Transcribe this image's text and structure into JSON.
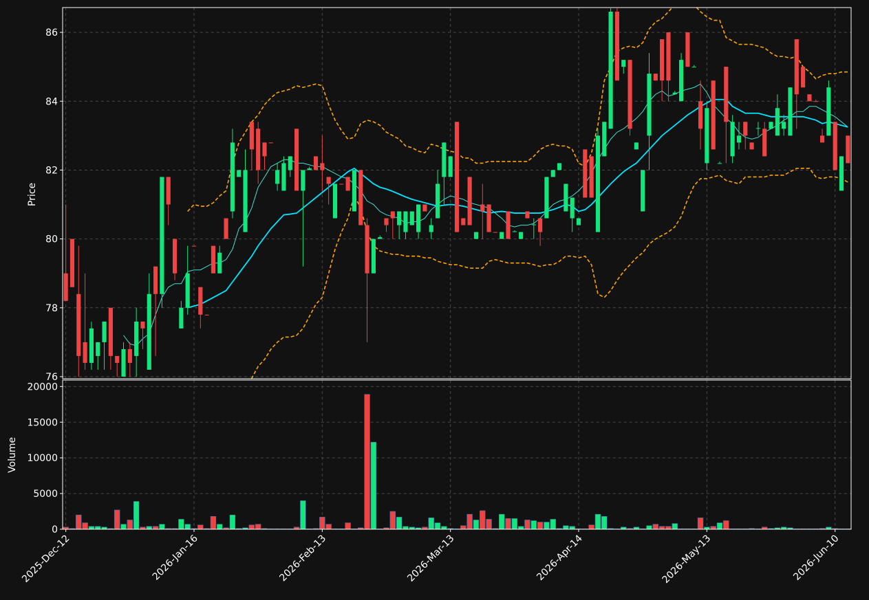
{
  "chart_data": {
    "type": "candlestick",
    "categories": [
      "2025-Dec-12",
      null,
      null,
      null,
      null,
      null,
      null,
      null,
      null,
      null,
      null,
      null,
      null,
      null,
      null,
      null,
      null,
      null,
      null,
      null,
      "2026-Jan-16",
      null,
      null,
      null,
      null,
      null,
      null,
      null,
      null,
      null,
      null,
      null,
      null,
      null,
      null,
      null,
      null,
      null,
      null,
      null,
      "2026-Feb-13",
      null,
      null,
      null,
      null,
      null,
      null,
      null,
      null,
      null,
      null,
      null,
      null,
      null,
      null,
      null,
      null,
      null,
      null,
      null,
      "2026-Mar-13",
      null,
      null,
      null,
      null,
      null,
      null,
      null,
      null,
      null,
      null,
      null,
      null,
      null,
      null,
      null,
      null,
      null,
      null,
      null,
      "2026-Apr-14",
      null,
      null,
      null,
      null,
      null,
      null,
      null,
      null,
      null,
      null,
      null,
      null,
      null,
      null,
      null,
      null,
      null,
      null,
      null,
      "2026-May-13",
      null,
      null,
      null,
      null,
      null,
      null,
      null,
      null,
      null,
      null,
      null,
      null,
      null,
      null,
      null,
      null,
      null,
      null,
      null,
      "2026-Jun-10",
      null,
      null
    ],
    "open": [
      79,
      80,
      78.4,
      77,
      76.4,
      76.6,
      77,
      78,
      76.6,
      76,
      76.8,
      76.6,
      77.6,
      76.2,
      79.2,
      78.4,
      81.8,
      80,
      77.4,
      78,
      79.8,
      78.6,
      77.8,
      79.8,
      79,
      80.6,
      80.8,
      81.8,
      80.2,
      83.4,
      83.2,
      82.8,
      82.8,
      81.6,
      81.4,
      82,
      83.2,
      81.4,
      82,
      82.4,
      82.2,
      81.8,
      80.6,
      81.6,
      81.8,
      80.8,
      82,
      80.4,
      79,
      80,
      80.6,
      80.8,
      80.4,
      80.2,
      80.4,
      80.2,
      81,
      80.2,
      80.6,
      81.8,
      81.8,
      83.4,
      80.6,
      81.8,
      80,
      81,
      81,
      80.2,
      80,
      80.8,
      80.2,
      80,
      80.8,
      80.4,
      80.6,
      80.6,
      81.8,
      82,
      80.8,
      80.6,
      80.4,
      82.6,
      82.4,
      80.2,
      82.4,
      83.2,
      86.6,
      85,
      85.2,
      82.6,
      80.8,
      83,
      84.8,
      85.8,
      86,
      84.2,
      84,
      86,
      85,
      84,
      82.2,
      84.6,
      82.2,
      85,
      82.4,
      82.8,
      83.4,
      82.8,
      83.2,
      83.2,
      83.2,
      83,
      83.2,
      83,
      85.8,
      85,
      84.2,
      84,
      83,
      83,
      83.4,
      81.4,
      83
    ],
    "high": [
      81,
      80,
      79.8,
      79,
      77.6,
      77,
      77.6,
      78,
      76.6,
      77,
      77,
      78,
      77.6,
      79,
      79.2,
      81.8,
      81.8,
      80,
      78.2,
      79.8,
      79.8,
      78.6,
      77.8,
      79.8,
      79.8,
      80.6,
      83.2,
      82,
      82.6,
      83.4,
      83.4,
      82.8,
      82.8,
      82.2,
      82.4,
      82.4,
      83.2,
      82,
      82.1,
      82.4,
      83,
      81.8,
      81.6,
      81.6,
      81.8,
      82,
      82,
      80.6,
      80,
      80.1,
      80.6,
      80.8,
      80.8,
      80.8,
      80.8,
      81,
      81,
      80.6,
      82,
      82.8,
      82.4,
      83.4,
      80.6,
      81.8,
      80.2,
      81.6,
      81,
      80.2,
      80.2,
      80.8,
      80.25,
      80.2,
      80.8,
      80.6,
      80.6,
      81.8,
      82,
      82.2,
      81.6,
      81.2,
      80.6,
      82.6,
      82.4,
      83.2,
      83.4,
      86.7,
      86.7,
      85.2,
      85.2,
      82.8,
      82,
      85.4,
      84.8,
      85.8,
      86,
      84.3,
      85.4,
      86,
      85.05,
      84.6,
      84,
      84.6,
      82.25,
      85,
      83.6,
      83.4,
      83.4,
      82.8,
      83.4,
      83.4,
      83.4,
      84.2,
      83.6,
      84.4,
      85.8,
      85,
      84.2,
      84.05,
      83.2,
      84.6,
      83.4,
      82.4,
      83
    ],
    "low": [
      78.2,
      78.6,
      76,
      76.2,
      76.2,
      76.2,
      76.2,
      76.2,
      76,
      76,
      76,
      76,
      76.8,
      76.2,
      76.6,
      78,
      80.4,
      78.8,
      77.4,
      77.8,
      79.78,
      77.4,
      77.78,
      79,
      79,
      80,
      80.6,
      81.8,
      80.2,
      82,
      81.6,
      82,
      82.78,
      81.4,
      81.4,
      81.8,
      81.4,
      79.2,
      82,
      82,
      81.4,
      81,
      80.6,
      81.58,
      81.4,
      80.8,
      80.4,
      77,
      79,
      80,
      80.2,
      80,
      80,
      80,
      80.4,
      80,
      80.8,
      80,
      80.6,
      81,
      81.8,
      80.2,
      80.4,
      80.4,
      80,
      80,
      80.2,
      80.18,
      80,
      80,
      80.2,
      80,
      80.6,
      80,
      79.8,
      80.6,
      81.8,
      82,
      80.8,
      80.2,
      80.4,
      81.2,
      81.2,
      80.2,
      82.4,
      83.2,
      84.6,
      84.8,
      83,
      82.6,
      80.8,
      82,
      84.6,
      84,
      84,
      84.2,
      84,
      85,
      85,
      82.6,
      82,
      82.6,
      82.2,
      82.2,
      82.2,
      82.6,
      82.6,
      82.6,
      83,
      82.4,
      83.2,
      83,
      83,
      83,
      83.2,
      84.4,
      84,
      83.98,
      82.8,
      83,
      82,
      81.4,
      82.2
    ],
    "close": [
      78.2,
      78.6,
      76.6,
      76.4,
      77.4,
      77,
      77.6,
      76.6,
      76.4,
      76.8,
      76.4,
      77.6,
      77.4,
      78.4,
      78.4,
      81.8,
      81,
      79,
      78,
      79,
      79.78,
      77.8,
      77.78,
      79,
      79.6,
      80,
      82.8,
      82,
      82,
      82.6,
      82,
      82.4,
      82.78,
      82,
      82.2,
      82.4,
      81.4,
      82,
      82.05,
      82,
      82,
      81.6,
      81.6,
      81.58,
      81.4,
      82,
      80.4,
      79,
      80,
      80.05,
      80.4,
      80.6,
      80.8,
      80.8,
      80.8,
      81,
      80.8,
      80.4,
      81.6,
      82.8,
      82.4,
      80.2,
      80.4,
      80.4,
      80.2,
      80.8,
      80.2,
      80.18,
      80.2,
      80,
      80.22,
      80.2,
      80.6,
      80.42,
      80.2,
      81.8,
      82,
      82.2,
      81.6,
      81.2,
      80.6,
      81.2,
      81.2,
      83,
      83.4,
      86.6,
      84.6,
      85.2,
      83.2,
      82.8,
      82,
      84.8,
      84.6,
      84.6,
      84.6,
      84.25,
      85.2,
      85,
      85,
      83.2,
      83.8,
      82.6,
      82.2,
      83.4,
      83.4,
      83,
      83,
      82.6,
      83.22,
      82.4,
      83.4,
      83.8,
      83.4,
      84.4,
      84.2,
      84.4,
      84,
      83.98,
      82.8,
      84.4,
      82,
      82.4,
      82.2
    ],
    "volume": [
      300,
      100,
      2000,
      900,
      400,
      400,
      300,
      100,
      2700,
      700,
      1300,
      3900,
      300,
      400,
      400,
      700,
      100,
      100,
      1400,
      700,
      100,
      600,
      100,
      1800,
      700,
      200,
      2000,
      100,
      200,
      600,
      700,
      100,
      50,
      50,
      50,
      50,
      300,
      4000,
      50,
      100,
      1700,
      700,
      50,
      50,
      900,
      50,
      200,
      18900,
      12200,
      50,
      200,
      2500,
      1700,
      400,
      300,
      200,
      300,
      1600,
      900,
      400,
      100,
      50,
      500,
      2100,
      1300,
      2600,
      1400,
      100,
      2100,
      1500,
      1500,
      400,
      1300,
      1200,
      1000,
      1000,
      1400,
      100,
      500,
      400,
      50,
      50,
      600,
      2100,
      1800,
      100,
      50,
      300,
      100,
      300,
      50,
      500,
      700,
      400,
      400,
      800,
      50,
      50,
      50,
      1600,
      300,
      400,
      900,
      1200,
      50,
      50,
      50,
      100,
      50,
      300,
      100,
      200,
      300,
      200,
      50,
      50,
      50,
      50,
      100,
      300,
      100,
      50,
      50
    ],
    "up_color": "#14e67e",
    "down_color": "#ef4444",
    "lines": [
      {
        "color": "#ffa500",
        "style": "dashed",
        "values": [
          null,
          null,
          null,
          null,
          null,
          null,
          null,
          null,
          null,
          null,
          null,
          null,
          null,
          null,
          null,
          null,
          null,
          null,
          null,
          80.8,
          81.0,
          80.95,
          80.95,
          81.05,
          81.25,
          81.4,
          82.2,
          82.8,
          83.1,
          83.4,
          83.6,
          83.9,
          84.1,
          84.25,
          84.3,
          84.35,
          84.45,
          84.4,
          84.45,
          84.5,
          84.45,
          83.9,
          83.45,
          83.15,
          82.9,
          82.95,
          83.35,
          83.45,
          83.4,
          83.3,
          83.1,
          83.0,
          82.9,
          82.7,
          82.65,
          82.55,
          82.5,
          82.75,
          82.7,
          82.6,
          82.55,
          82.5,
          82.35,
          82.35,
          82.2,
          82.2,
          82.25,
          82.25,
          82.25,
          82.25,
          82.25,
          82.25,
          82.25,
          82.4,
          82.6,
          82.7,
          82.75,
          82.7,
          82.7,
          82.6,
          82.2,
          82.1,
          82.5,
          83.3,
          84.6,
          85.0,
          85.45,
          85.55,
          85.6,
          85.55,
          85.7,
          86.1,
          86.3,
          86.4,
          86.6,
          86.8,
          86.9,
          86.9,
          86.8,
          86.6,
          86.45,
          86.35,
          86.35,
          85.85,
          85.75,
          85.65,
          85.65,
          85.65,
          85.6,
          85.55,
          85.4,
          85.3,
          85.3,
          85.25,
          85.3,
          85.0,
          84.85,
          84.65,
          84.75,
          84.8,
          84.8,
          84.85,
          84.85
        ]
      },
      {
        "color": "#ffa500",
        "style": "dashed",
        "values": [
          null,
          null,
          null,
          null,
          null,
          null,
          null,
          null,
          null,
          null,
          null,
          null,
          null,
          null,
          null,
          null,
          null,
          null,
          null,
          75.2,
          75.1,
          75.25,
          75.45,
          75.55,
          75.55,
          75.6,
          75.3,
          75.2,
          75.4,
          75.95,
          76.3,
          76.5,
          76.8,
          77.0,
          77.15,
          77.15,
          77.2,
          77.4,
          77.75,
          78.1,
          78.3,
          79.0,
          79.7,
          80.2,
          80.6,
          81.25,
          80.9,
          80.2,
          79.8,
          79.65,
          79.6,
          79.55,
          79.55,
          79.5,
          79.5,
          79.5,
          79.45,
          79.45,
          79.35,
          79.3,
          79.25,
          79.25,
          79.2,
          79.15,
          79.15,
          79.15,
          79.35,
          79.4,
          79.35,
          79.3,
          79.3,
          79.3,
          79.3,
          79.25,
          79.2,
          79.25,
          79.25,
          79.35,
          79.5,
          79.5,
          79.45,
          79.5,
          79.25,
          78.4,
          78.3,
          78.5,
          78.8,
          79.05,
          79.25,
          79.45,
          79.6,
          79.85,
          80.0,
          80.1,
          80.2,
          80.35,
          80.65,
          81.15,
          81.55,
          81.75,
          81.75,
          81.8,
          81.85,
          81.7,
          81.65,
          81.6,
          81.8,
          81.8,
          81.8,
          81.8,
          81.85,
          81.85,
          81.85,
          81.95,
          82.05,
          82.05,
          82.05,
          81.8,
          81.75,
          81.8,
          81.8,
          81.75,
          81.65
        ]
      },
      {
        "color": "#40e0d0",
        "style": "thin",
        "values": [
          null,
          null,
          null,
          null,
          null,
          null,
          null,
          null,
          null,
          77.2,
          76.95,
          76.9,
          77.1,
          77.25,
          77.8,
          78.3,
          78.6,
          78.7,
          78.7,
          79.05,
          79.1,
          79.1,
          79.2,
          79.3,
          79.3,
          79.4,
          79.7,
          80.3,
          80.5,
          80.9,
          81.5,
          81.8,
          82.1,
          82.2,
          82.3,
          82.3,
          82.2,
          82.2,
          82.15,
          82.1,
          82.1,
          82.0,
          81.9,
          81.8,
          81.75,
          81.6,
          81.4,
          81.1,
          81.0,
          80.8,
          80.7,
          80.65,
          80.6,
          80.45,
          80.5,
          80.5,
          80.6,
          80.85,
          81.0,
          81.15,
          81.25,
          81.2,
          81.15,
          81.05,
          81.0,
          80.95,
          80.9,
          80.75,
          80.6,
          80.4,
          80.35,
          80.4,
          80.4,
          80.45,
          80.6,
          80.8,
          81.0,
          81.1,
          81.15,
          81.25,
          81.4,
          81.6,
          81.9,
          82.3,
          82.6,
          82.9,
          83.1,
          83.2,
          83.35,
          83.5,
          83.7,
          84.0,
          84.2,
          84.3,
          84.15,
          84.2,
          84.3,
          84.35,
          84.4,
          84.5,
          84.25,
          83.9,
          83.7,
          83.5,
          83.35,
          83.1,
          82.95,
          82.9,
          82.95,
          83.1,
          83.2,
          83.3,
          83.45,
          83.55,
          83.7,
          83.7,
          83.85,
          83.85,
          83.75,
          83.65,
          83.55,
          83.4,
          83.25
        ]
      },
      {
        "color": "#00e5ff",
        "style": "bold",
        "values": [
          null,
          null,
          null,
          null,
          null,
          null,
          null,
          null,
          null,
          null,
          null,
          null,
          null,
          null,
          null,
          null,
          null,
          null,
          null,
          78.0,
          78.05,
          78.1,
          78.2,
          78.3,
          78.4,
          78.5,
          78.75,
          79.0,
          79.25,
          79.5,
          79.8,
          80.05,
          80.3,
          80.5,
          80.7,
          80.72,
          80.75,
          80.9,
          81.05,
          81.2,
          81.35,
          81.5,
          81.65,
          81.8,
          81.95,
          82.05,
          81.9,
          81.75,
          81.6,
          81.5,
          81.45,
          81.38,
          81.3,
          81.22,
          81.15,
          81.1,
          81.05,
          81.0,
          80.95,
          80.98,
          81.0,
          80.98,
          80.95,
          80.9,
          80.85,
          80.8,
          80.75,
          80.78,
          80.8,
          80.78,
          80.75,
          80.75,
          80.75,
          80.75,
          80.75,
          80.8,
          80.85,
          80.92,
          81.0,
          80.95,
          80.8,
          80.85,
          81.0,
          81.2,
          81.4,
          81.6,
          81.78,
          81.95,
          82.08,
          82.2,
          82.4,
          82.6,
          82.8,
          83.0,
          83.15,
          83.3,
          83.45,
          83.6,
          83.72,
          83.85,
          83.95,
          84.05,
          84.05,
          84.05,
          83.85,
          83.75,
          83.65,
          83.65,
          83.65,
          83.6,
          83.55,
          83.55,
          83.55,
          83.55,
          83.55,
          83.55,
          83.5,
          83.45,
          83.35,
          83.4,
          83.35,
          83.3,
          83.25
        ]
      }
    ],
    "ylabel": "Price",
    "ylim": [
      75.94,
      86.72
    ],
    "yticks": [
      76,
      78,
      80,
      82,
      84,
      86
    ],
    "volume_label": "Volume",
    "volume_ylim": [
      0,
      20900
    ],
    "volume_yticks": [
      0,
      5000,
      10000,
      15000,
      20000
    ],
    "grid": true
  }
}
